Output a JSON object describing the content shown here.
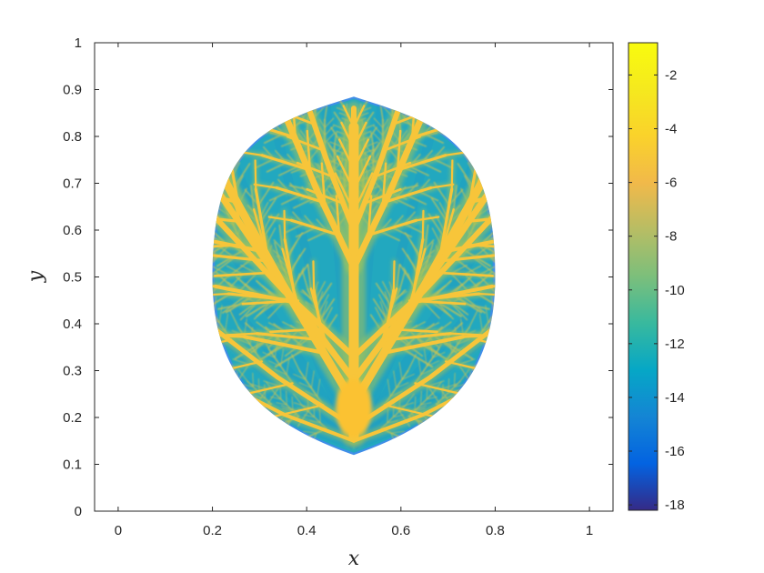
{
  "chart_data": {
    "type": "heatmap",
    "title": "",
    "xlabel": "x",
    "ylabel": "y",
    "xlim": [
      -0.05,
      1.05
    ],
    "ylim": [
      0,
      1
    ],
    "x_ticks": [
      0,
      0.2,
      0.4,
      0.6,
      0.8,
      1
    ],
    "x_tick_labels": [
      "0",
      "0.2",
      "0.4",
      "0.6",
      "0.8",
      "1"
    ],
    "y_ticks": [
      0,
      0.1,
      0.2,
      0.3,
      0.4,
      0.5,
      0.6,
      0.7,
      0.8,
      0.9,
      1
    ],
    "y_tick_labels": [
      "0",
      "0.1",
      "0.2",
      "0.3",
      "0.4",
      "0.5",
      "0.6",
      "0.7",
      "0.8",
      "0.9",
      "1"
    ],
    "grid": false,
    "colormap": "parula",
    "colorbar": {
      "range": [
        -18.2,
        -0.8
      ],
      "ticks": [
        -2,
        -4,
        -6,
        -8,
        -10,
        -12,
        -14,
        -16,
        -18
      ],
      "tick_labels": [
        "-2",
        "-4",
        "-6",
        "-8",
        "-10",
        "-12",
        "-14",
        "-16",
        "-18"
      ]
    },
    "region": {
      "shape": "lens",
      "x_range": [
        0.2,
        0.8
      ],
      "y_range": [
        0.12,
        0.885
      ],
      "center_x": 0.5
    },
    "field": {
      "background_value": -10,
      "boundary_value": -14,
      "vein_value": -2,
      "trunk_base": [
        0.5,
        0.13
      ],
      "trunk_top": [
        0.5,
        0.82
      ]
    }
  }
}
